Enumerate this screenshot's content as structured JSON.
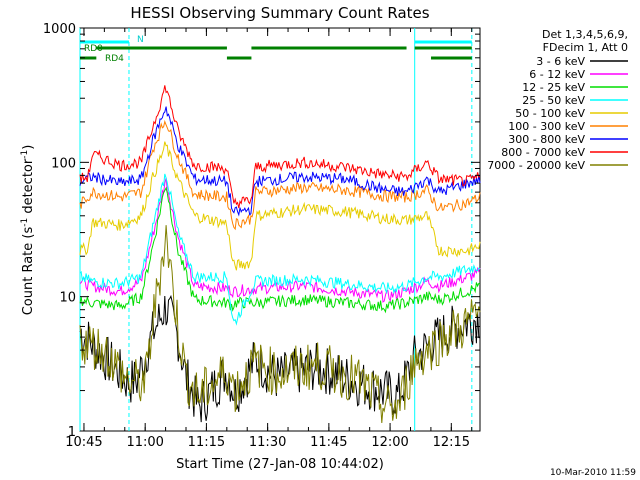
{
  "chart_data": {
    "type": "line",
    "title": "HESSI Observing Summary Count Rates",
    "xlabel": "Start Time (27-Jan-08 10:44:02)",
    "ylabel_main": "Count Rate (s",
    "ylabel_sup1": "-1",
    "ylabel_mid": " detector",
    "ylabel_sup2": "-1",
    "ylabel_end": ")",
    "x_unit": "minutes since 10:44:02",
    "xlim": [
      0,
      98
    ],
    "ylim": [
      1,
      1000
    ],
    "yscale": "log",
    "x_ticks": [
      {
        "label": "10:45",
        "value": 0.97
      },
      {
        "label": "11:00",
        "value": 15.97
      },
      {
        "label": "11:15",
        "value": 30.97
      },
      {
        "label": "11:30",
        "value": 45.97
      },
      {
        "label": "11:45",
        "value": 60.97
      },
      {
        "label": "12:00",
        "value": 75.97
      },
      {
        "label": "12:15",
        "value": 90.97
      }
    ],
    "y_ticks": [
      {
        "label": "1",
        "value": 1
      },
      {
        "label": "10",
        "value": 10
      },
      {
        "label": "100",
        "value": 100
      },
      {
        "label": "1000",
        "value": 1000
      }
    ],
    "legend_header": [
      "Det 1,3,4,5,6,9,",
      "FDecim 1, Att 0"
    ],
    "legend_placement": "right",
    "series": [
      {
        "name": "3 - 6 keV",
        "color": "#000000",
        "x": [
          0,
          12,
          14,
          18,
          21,
          24,
          26,
          29,
          36,
          38,
          43,
          48,
          58,
          68,
          78,
          82,
          86,
          90,
          94,
          98
        ],
        "y": [
          5.5,
          2.3,
          2.4,
          5.5,
          8.5,
          5.0,
          2.5,
          1.5,
          2.8,
          1.9,
          3.4,
          2.5,
          3.0,
          2.3,
          1.8,
          3.5,
          4.5,
          5.5,
          6.3,
          7.0
        ]
      },
      {
        "name": "6 - 12 keV",
        "color": "#ff00ff",
        "x": [
          0,
          3,
          10,
          15,
          18,
          21,
          24,
          28,
          36,
          37.5,
          38,
          43,
          55,
          65,
          75,
          80,
          85,
          88,
          95,
          98
        ],
        "y": [
          13,
          12,
          11,
          13,
          30,
          75,
          28,
          12,
          11.5,
          11,
          11,
          11.5,
          12,
          11,
          10,
          11,
          13,
          12,
          14,
          15
        ]
      },
      {
        "name": "12 - 25 keV",
        "color": "#00dd00",
        "x": [
          0,
          3,
          10,
          15,
          18,
          21,
          24,
          28,
          36,
          37.5,
          38,
          43,
          55,
          65,
          75,
          80,
          85,
          88,
          95,
          98
        ],
        "y": [
          9.5,
          9,
          8.5,
          10,
          25,
          70,
          22,
          9.5,
          9,
          8.5,
          9,
          9,
          9.5,
          9,
          8.5,
          9,
          10,
          9.5,
          11,
          12
        ]
      },
      {
        "name": "25 - 50 keV",
        "color": "#00ffff",
        "x": [
          0,
          3,
          10,
          15,
          18,
          21,
          24,
          28,
          36,
          37.5,
          38,
          43,
          55,
          65,
          75,
          80,
          85,
          88,
          95,
          98
        ],
        "y": [
          14,
          13,
          12.5,
          14,
          35,
          85,
          30,
          14,
          14,
          6.5,
          6.5,
          13,
          13.5,
          12.5,
          11.5,
          12,
          14,
          14,
          16,
          17
        ]
      },
      {
        "name": "50 - 100 keV",
        "color": "#e6cc00",
        "x": [
          0,
          2,
          3,
          10,
          15,
          18,
          21,
          24,
          28,
          36,
          37.5,
          38,
          42,
          43,
          55,
          65,
          75,
          80,
          85,
          88,
          95,
          98
        ],
        "y": [
          22,
          23,
          36,
          34,
          40,
          80,
          135,
          75,
          40,
          35,
          17,
          17,
          18,
          40,
          45,
          43,
          38,
          37,
          40,
          22,
          22,
          24
        ]
      },
      {
        "name": "100 - 300 keV",
        "color": "#ff8000",
        "x": [
          0,
          3,
          10,
          15,
          18,
          21,
          24,
          28,
          36,
          37.5,
          38,
          42,
          43,
          55,
          65,
          75,
          80,
          85,
          88,
          95,
          98
        ],
        "y": [
          48,
          60,
          55,
          60,
          130,
          210,
          110,
          58,
          55,
          35,
          35,
          38,
          60,
          65,
          62,
          56,
          55,
          62,
          45,
          50,
          55
        ]
      },
      {
        "name": "300 - 800 keV",
        "color": "#0000ff",
        "x": [
          0,
          3,
          10,
          15,
          18,
          21,
          24,
          28,
          36,
          37.5,
          38,
          42,
          43,
          55,
          65,
          75,
          80,
          85,
          88,
          95,
          98
        ],
        "y": [
          72,
          78,
          70,
          75,
          150,
          260,
          135,
          75,
          72,
          42,
          42,
          45,
          72,
          78,
          75,
          62,
          60,
          75,
          60,
          70,
          75
        ]
      },
      {
        "name": "800 - 7000 keV",
        "color": "#ff0000",
        "x": [
          0,
          2,
          3,
          10,
          15,
          18,
          21,
          24,
          28,
          36,
          37.5,
          38,
          42,
          43,
          55,
          65,
          75,
          80,
          85,
          88,
          95,
          98
        ],
        "y": [
          75,
          78,
          115,
          95,
          100,
          190,
          370,
          170,
          95,
          90,
          50,
          50,
          52,
          92,
          100,
          92,
          80,
          78,
          100,
          75,
          72,
          78
        ]
      },
      {
        "name": "7000 - 20000 keV",
        "color": "#808000",
        "x": [
          0,
          6,
          12,
          16,
          18,
          21,
          24,
          26,
          29,
          36,
          38,
          43,
          48,
          58,
          68,
          75,
          78,
          82,
          86,
          90,
          94,
          98
        ],
        "y": [
          4.8,
          4.0,
          2.3,
          2.3,
          7,
          30,
          6,
          2.5,
          1.8,
          2.8,
          2.0,
          3.2,
          2.7,
          3.1,
          2.4,
          1.5,
          1.5,
          3.3,
          4.2,
          5.2,
          6.0,
          7.5
        ]
      }
    ],
    "segment_labels": [
      "RD0",
      "RD4",
      "N"
    ],
    "segment_bars": [
      {
        "label": "N",
        "color": "#00ffff",
        "ranges": [
          [
            0,
            12
          ],
          [
            82,
            96
          ]
        ]
      },
      {
        "label": "RD0",
        "color": "#008000",
        "ranges": [
          [
            4,
            36
          ],
          [
            42,
            80
          ],
          [
            82,
            96
          ]
        ]
      },
      {
        "label": "RD4",
        "color": "#008000",
        "ranges": [
          [
            0,
            4
          ],
          [
            36,
            42
          ],
          [
            86,
            96
          ]
        ]
      }
    ],
    "vlines_solid": [
      0,
      82
    ],
    "vlines_dashed": [
      12,
      96
    ],
    "vline_color": "#00ffff",
    "grid": false,
    "footer_date": "10-Mar-2010 11:59"
  }
}
